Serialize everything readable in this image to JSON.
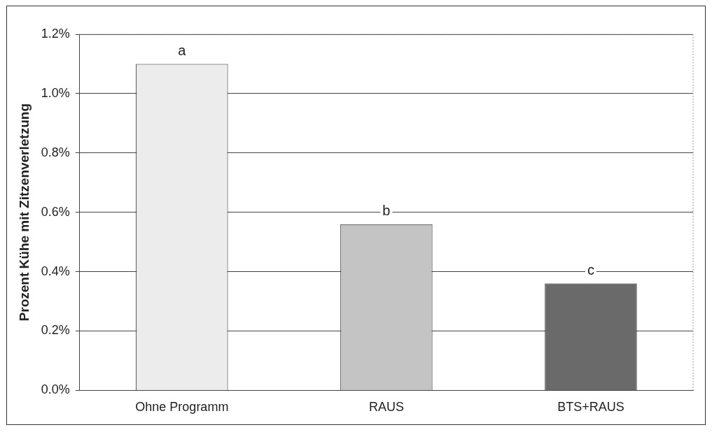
{
  "chart_data": {
    "type": "bar",
    "ylabel": "Prozent Kühe mit Zitzenverletzung",
    "categories": [
      "Ohne Programm",
      "RAUS",
      "BTS+RAUS"
    ],
    "values": [
      1.1,
      0.56,
      0.36
    ],
    "colors": [
      "#ececec",
      "#c4c4c4",
      "#6a6a6a"
    ],
    "ylim": [
      0,
      1.2
    ],
    "yticks": [
      {
        "value": 0,
        "label": "0.0%"
      },
      {
        "value": 0.2,
        "label": "0.2%"
      },
      {
        "value": 0.4,
        "label": "0.4%"
      },
      {
        "value": 0.6,
        "label": "0.6%"
      },
      {
        "value": 0.8,
        "label": "0.8%"
      },
      {
        "value": 1.0,
        "label": "1.0%"
      },
      {
        "value": 1.2,
        "label": "1.2%"
      }
    ],
    "grid": "y",
    "legend": false,
    "annotations": [
      {
        "text": "a",
        "x": "Ohne Programm",
        "y": 1.1
      },
      {
        "text": "b",
        "x": "RAUS",
        "y": 0.56
      },
      {
        "text": "c",
        "x": "BTS+RAUS",
        "y": 0.36
      }
    ]
  }
}
